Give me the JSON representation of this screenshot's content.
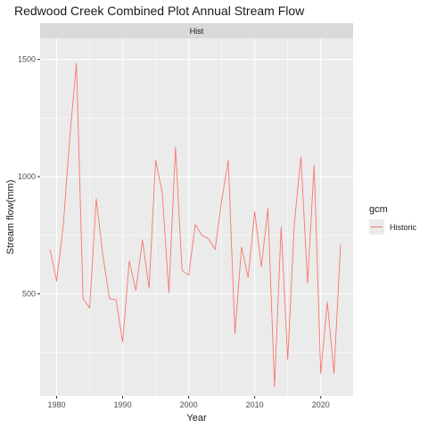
{
  "chart_data": {
    "type": "line",
    "title": "Redwood Creek Combined Plot Annual Stream Flow",
    "facet_label": "Hist",
    "xlabel": "Year",
    "ylabel": "Stream flow(mm)",
    "xlim": [
      1977.5,
      2024.9
    ],
    "ylim": [
      65,
      1590
    ],
    "x_ticks": [
      1980,
      1990,
      2000,
      2010,
      2020
    ],
    "y_ticks": [
      500,
      1000,
      1500
    ],
    "grid": true,
    "legend": {
      "title": "gcm",
      "position": "right"
    },
    "series": [
      {
        "name": "Historic",
        "color": "#F8766D",
        "x": [
          1979,
          1980,
          1981,
          1982,
          1983,
          1984,
          1985,
          1986,
          1987,
          1988,
          1989,
          1990,
          1991,
          1992,
          1993,
          1994,
          1995,
          1996,
          1997,
          1998,
          1999,
          2000,
          2001,
          2002,
          2003,
          2004,
          2005,
          2006,
          2007,
          2008,
          2009,
          2010,
          2011,
          2012,
          2013,
          2014,
          2015,
          2016,
          2017,
          2018,
          2019,
          2020,
          2021,
          2022,
          2023
        ],
        "values": [
          690,
          555,
          790,
          1170,
          1485,
          480,
          440,
          905,
          665,
          480,
          475,
          295,
          640,
          515,
          730,
          525,
          1070,
          930,
          505,
          1125,
          600,
          580,
          795,
          750,
          735,
          690,
          900,
          1070,
          330,
          700,
          570,
          850,
          615,
          865,
          105,
          785,
          220,
          800,
          1085,
          545,
          1050,
          160,
          465,
          160,
          710
        ]
      }
    ]
  }
}
